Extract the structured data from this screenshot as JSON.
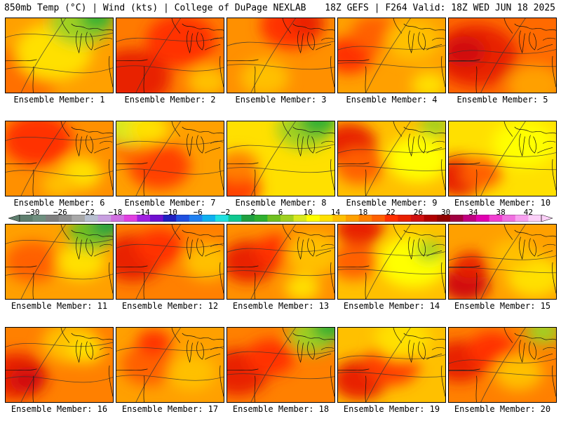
{
  "header": {
    "left": "850mb Temp (°C) | Wind (kts) | College of DuPage NEXLAB",
    "right": "18Z GEFS | F264 Valid: 18Z WED JUN 18 2025"
  },
  "colorbar": {
    "tick_labels": [
      "-30",
      "-26",
      "-22",
      "-18",
      "-14",
      "-10",
      "-6",
      "-2",
      "2",
      "6",
      "10",
      "14",
      "18",
      "22",
      "26",
      "30",
      "34",
      "38",
      "42"
    ],
    "colors": [
      "#5f7f6f",
      "#6f8f7f",
      "#7f7f7f",
      "#8f8f8f",
      "#a8a8a8",
      "#b8c0d0",
      "#c8a0e0",
      "#d070e0",
      "#e040e0",
      "#a020e0",
      "#7010d0",
      "#2020c0",
      "#2050e0",
      "#2080f0",
      "#10b0f0",
      "#20e0e0",
      "#10c890",
      "#20a040",
      "#30b030",
      "#70c020",
      "#a0d020",
      "#d8e820",
      "#ffff00",
      "#ffe000",
      "#ffc000",
      "#ffa000",
      "#ff8000",
      "#ff6000",
      "#ff3000",
      "#e82000",
      "#d01010",
      "#b00000",
      "#900000",
      "#a00040",
      "#c00080",
      "#e000b0",
      "#f040d0",
      "#f070e0",
      "#f8a0f0",
      "#fcd0f8"
    ]
  },
  "members": [
    {
      "label": "Ensemble Member: 1"
    },
    {
      "label": "Ensemble Member: 2"
    },
    {
      "label": "Ensemble Member: 3"
    },
    {
      "label": "Ensemble Member: 4"
    },
    {
      "label": "Ensemble Member: 5"
    },
    {
      "label": "Ensemble Member: 6"
    },
    {
      "label": "Ensemble Member: 7"
    },
    {
      "label": "Ensemble Member: 8"
    },
    {
      "label": "Ensemble Member: 9"
    },
    {
      "label": "Ensemble Member: 10"
    },
    {
      "label": "Ensemble Member: 11"
    },
    {
      "label": "Ensemble Member: 12"
    },
    {
      "label": "Ensemble Member: 13"
    },
    {
      "label": "Ensemble Member: 14"
    },
    {
      "label": "Ensemble Member: 15"
    },
    {
      "label": "Ensemble Member: 16"
    },
    {
      "label": "Ensemble Member: 17"
    },
    {
      "label": "Ensemble Member: 18"
    },
    {
      "label": "Ensemble Member: 19"
    },
    {
      "label": "Ensemble Member: 20"
    }
  ]
}
